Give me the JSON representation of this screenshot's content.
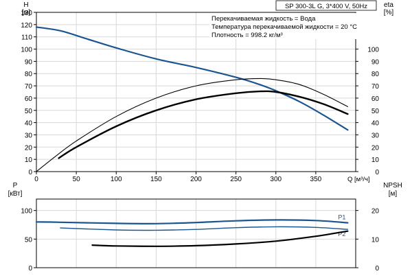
{
  "chart_data": [
    {
      "type": "line",
      "panel": "head-efficiency",
      "title": "SP 300-3L G, 3*400 V, 50Hz",
      "annotations": [
        "Перекачиваемая жидкость = Вода",
        "Температура перекачиваемой жидкости = 20 °C",
        "Плотность = 998.2 кг/м³"
      ],
      "xlabel": "Q [м³/ч]",
      "xlim": [
        0,
        400
      ],
      "xticks": [
        0,
        50,
        100,
        150,
        200,
        250,
        300,
        350
      ],
      "y_left": {
        "label_top": "H",
        "label_unit": "[м]",
        "lim": [
          0,
          130
        ],
        "ticks": [
          0,
          10,
          20,
          30,
          40,
          50,
          60,
          70,
          80,
          90,
          100,
          110,
          120,
          130
        ]
      },
      "y_right": {
        "label_top": "eta",
        "label_unit": "[%]",
        "lim": [
          0,
          130
        ],
        "ticks": [
          0,
          10,
          20,
          30,
          40,
          50,
          60,
          70,
          80,
          90,
          100
        ]
      },
      "grid": true,
      "series": [
        {
          "color": "#1a5590",
          "axis": "left",
          "x": [
            0,
            30,
            60,
            100,
            150,
            200,
            250,
            280,
            300,
            330,
            360,
            390
          ],
          "y": [
            118,
            115,
            109,
            101,
            92,
            85,
            77,
            71,
            66,
            57,
            46,
            34
          ]
        },
        {
          "color": "#000000",
          "axis": "right",
          "weight": "thin",
          "x": [
            0,
            25,
            50,
            100,
            150,
            200,
            250,
            280,
            300,
            330,
            360,
            390
          ],
          "y": [
            0,
            13,
            25,
            45,
            60,
            70,
            75,
            76,
            75,
            71,
            63,
            53
          ]
        },
        {
          "color": "#000000",
          "axis": "right",
          "weight": "thick",
          "x": [
            28,
            50,
            100,
            150,
            200,
            250,
            280,
            300,
            330,
            360,
            390
          ],
          "y": [
            11,
            20,
            37,
            50,
            59,
            64,
            65.5,
            65,
            61,
            55,
            47
          ]
        }
      ]
    },
    {
      "type": "line",
      "panel": "power-npsh",
      "xlim": [
        0,
        400
      ],
      "y_left": {
        "label_top": "P",
        "label_unit": "[кВт]",
        "lim": [
          0,
          120
        ],
        "ticks": [
          0,
          50,
          100
        ]
      },
      "y_right": {
        "label_top": "NPSH",
        "label_unit": "[м]",
        "lim": [
          0,
          24
        ],
        "ticks": [
          0,
          10,
          20
        ]
      },
      "grid": true,
      "series": [
        {
          "name": "P1",
          "color": "#1a5590",
          "axis": "left",
          "x": [
            0,
            30,
            100,
            150,
            200,
            250,
            300,
            350,
            390
          ],
          "y": [
            80,
            79.5,
            77.5,
            77,
            79,
            82,
            83.5,
            82.5,
            78.5
          ]
        },
        {
          "name": "P2",
          "color": "#1a5590",
          "axis": "left",
          "weight": "thin",
          "x": [
            30,
            100,
            150,
            200,
            250,
            300,
            350,
            390
          ],
          "y": [
            69.5,
            66,
            65.5,
            67,
            70,
            71.5,
            70.5,
            67
          ]
        },
        {
          "color": "#000000",
          "axis": "right",
          "x": [
            70,
            100,
            150,
            200,
            250,
            300,
            350,
            390
          ],
          "y": [
            7.9,
            7.6,
            7.5,
            7.7,
            8.3,
            9.3,
            11,
            12.8
          ]
        }
      ]
    }
  ]
}
